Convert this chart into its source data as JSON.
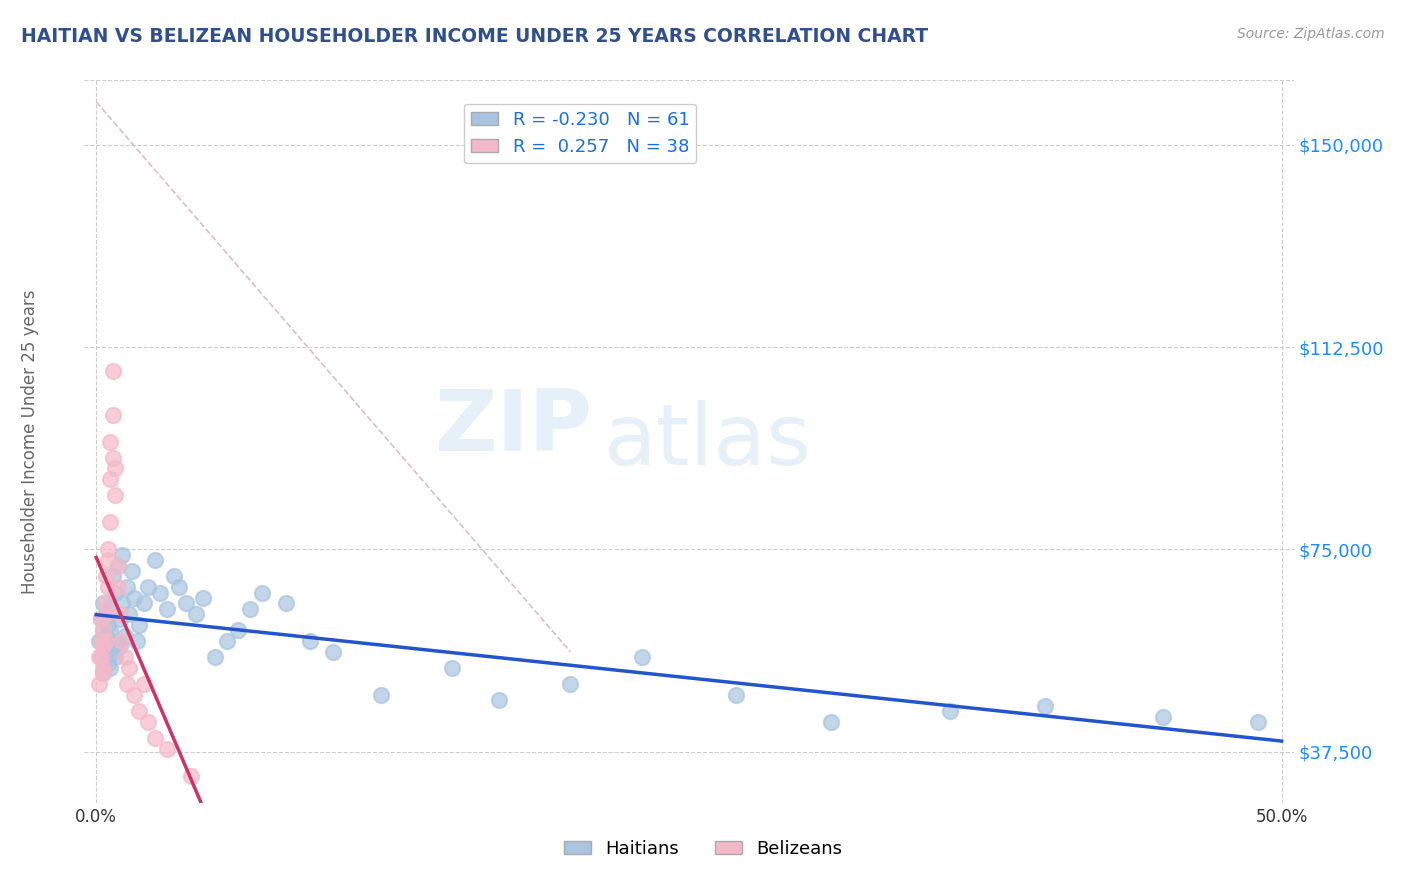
{
  "title": "HAITIAN VS BELIZEAN HOUSEHOLDER INCOME UNDER 25 YEARS CORRELATION CHART",
  "source": "Source: ZipAtlas.com",
  "ylabel": "Householder Income Under 25 years",
  "xlim": [
    -0.005,
    0.505
  ],
  "ylim": [
    28000,
    162000
  ],
  "ytick_positions": [
    37500,
    75000,
    112500,
    150000
  ],
  "ytick_labels": [
    "$37,500",
    "$75,000",
    "$112,500",
    "$150,000"
  ],
  "watermark_zip": "ZIP",
  "watermark_atlas": "atlas",
  "haitian_color": "#a8c4e0",
  "belizean_color": "#f4b8c8",
  "haitian_R": -0.23,
  "haitian_N": 61,
  "belizean_R": 0.257,
  "belizean_N": 38,
  "title_color": "#2F4F8F",
  "axis_label_color": "#666666",
  "tick_color_y": "#1a8cff",
  "grid_color": "#cccccc",
  "trend_haitian_color": "#2255cc",
  "trend_belizean_color": "#cc3366",
  "diagonal_color": "#ddbbcc",
  "haitian_scatter_x": [
    0.001,
    0.002,
    0.002,
    0.003,
    0.003,
    0.003,
    0.004,
    0.004,
    0.004,
    0.005,
    0.005,
    0.005,
    0.006,
    0.006,
    0.006,
    0.007,
    0.007,
    0.008,
    0.008,
    0.009,
    0.009,
    0.01,
    0.01,
    0.011,
    0.011,
    0.012,
    0.013,
    0.014,
    0.015,
    0.016,
    0.017,
    0.018,
    0.02,
    0.022,
    0.025,
    0.027,
    0.03,
    0.033,
    0.035,
    0.038,
    0.042,
    0.045,
    0.05,
    0.055,
    0.06,
    0.065,
    0.07,
    0.08,
    0.09,
    0.1,
    0.12,
    0.15,
    0.17,
    0.2,
    0.23,
    0.27,
    0.31,
    0.36,
    0.4,
    0.45,
    0.49
  ],
  "haitian_scatter_y": [
    58000,
    55000,
    62000,
    52000,
    60000,
    65000,
    56000,
    59000,
    63000,
    54000,
    57000,
    61000,
    53000,
    60000,
    64000,
    56000,
    70000,
    55000,
    67000,
    58000,
    72000,
    57000,
    62000,
    65000,
    74000,
    59000,
    68000,
    63000,
    71000,
    66000,
    58000,
    61000,
    65000,
    68000,
    73000,
    67000,
    64000,
    70000,
    68000,
    65000,
    63000,
    66000,
    55000,
    58000,
    60000,
    64000,
    67000,
    65000,
    58000,
    56000,
    48000,
    53000,
    47000,
    50000,
    55000,
    48000,
    43000,
    45000,
    46000,
    44000,
    43000
  ],
  "belizean_scatter_x": [
    0.001,
    0.001,
    0.002,
    0.002,
    0.002,
    0.003,
    0.003,
    0.003,
    0.003,
    0.004,
    0.004,
    0.004,
    0.004,
    0.005,
    0.005,
    0.005,
    0.006,
    0.006,
    0.006,
    0.007,
    0.007,
    0.007,
    0.008,
    0.008,
    0.009,
    0.009,
    0.01,
    0.011,
    0.012,
    0.013,
    0.014,
    0.016,
    0.018,
    0.02,
    0.022,
    0.025,
    0.03,
    0.04
  ],
  "belizean_scatter_y": [
    55000,
    50000,
    58000,
    62000,
    55000,
    53000,
    60000,
    57000,
    52000,
    65000,
    58000,
    63000,
    70000,
    73000,
    68000,
    75000,
    80000,
    88000,
    95000,
    92000,
    100000,
    108000,
    85000,
    90000,
    72000,
    68000,
    63000,
    58000,
    55000,
    50000,
    53000,
    48000,
    45000,
    50000,
    43000,
    40000,
    38000,
    33000
  ]
}
